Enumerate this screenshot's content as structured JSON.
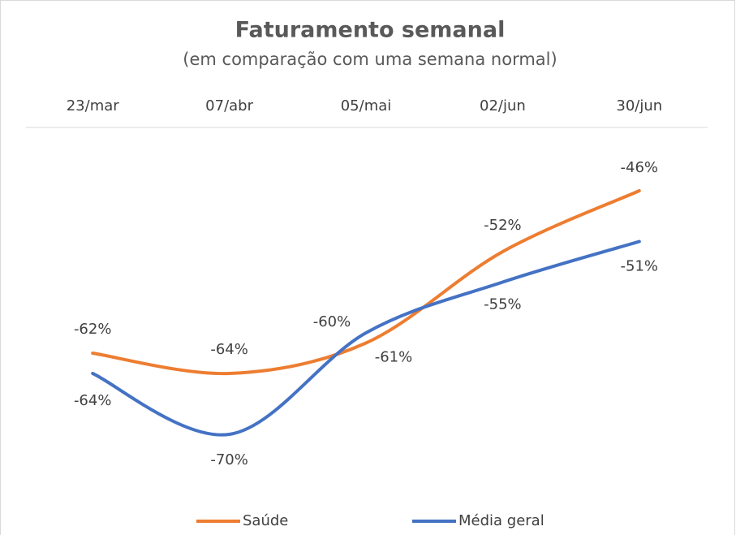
{
  "chart_data": {
    "type": "line",
    "title": "Faturamento semanal",
    "subtitle": "(em comparação com uma semana normal)",
    "categories": [
      "23/mar",
      "07/abr",
      "05/mai",
      "02/jun",
      "30/jun"
    ],
    "series": [
      {
        "name": "Saúde",
        "color": "#ED7D31",
        "values": [
          -62,
          -64,
          -61,
          -52,
          -46
        ],
        "value_labels": [
          "-62%",
          "-64%",
          "-61%",
          "-52%",
          "-46%"
        ]
      },
      {
        "name": "Média geral",
        "color": "#4472C4",
        "values": [
          -64,
          -70,
          -60,
          -55,
          -51
        ],
        "value_labels": [
          "-64%",
          "-70%",
          "-60%",
          "-55%",
          "-51%"
        ]
      }
    ],
    "ylim": [
      -76,
      -40
    ],
    "legend": "bottom"
  }
}
